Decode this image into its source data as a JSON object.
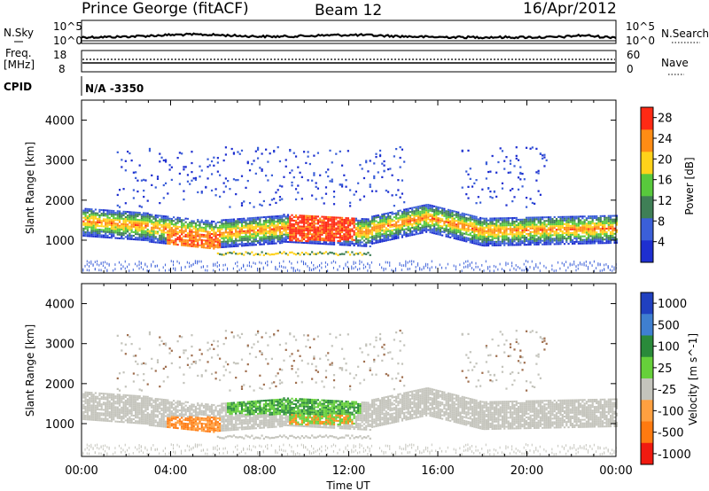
{
  "header": {
    "station": "Prince George (fitACF)",
    "beam": "Beam 12",
    "date": "16/Apr/2012"
  },
  "strips": {
    "nsky_label": "N.Sky",
    "nsearch_label": "N.Search",
    "noise_ticks": [
      "10^5",
      "10^0"
    ],
    "freq_label_1": "Freq.",
    "freq_label_2": "[MHz]",
    "freq_left_ticks": [
      "18",
      "8"
    ],
    "nave_label": "Nave",
    "nave_right_ticks": [
      "60",
      "0"
    ],
    "cpid_label": "CPID",
    "cpid_value": "N/A -3350"
  },
  "colors": {
    "power_scale": [
      "#1e2fd0",
      "#3b5fd8",
      "#3f7f56",
      "#58c93c",
      "#ffd21a",
      "#ff8c14",
      "#ff2a14"
    ],
    "velocity_scale": [
      "#2040c0",
      "#3f7fd0",
      "#2a8a3a",
      "#66d03a",
      "#c4c4bc",
      "#ffa040",
      "#ff7a10",
      "#f01a10"
    ],
    "ground_scatter": "#c4c4bc"
  },
  "chart_data": [
    {
      "type": "heatmap",
      "title": "Prince George (fitACF)  Beam 12  16/Apr/2012",
      "panel": "power",
      "ylabel": "Slant Range [km]",
      "xlabel": "Time UT",
      "x_ticks": [
        "00:00",
        "04:00",
        "08:00",
        "12:00",
        "16:00",
        "20:00",
        "00:00"
      ],
      "y_ticks": [
        "1000",
        "2000",
        "3000",
        "4000"
      ],
      "ylim": [
        180,
        4500
      ],
      "xlim_hours": [
        0,
        24
      ],
      "colorbar": {
        "label": "Power [dB]",
        "ticks": [
          "28",
          "24",
          "20",
          "16",
          "12",
          "8",
          "4"
        ],
        "range": [
          0,
          30
        ]
      },
      "features": [
        {
          "name": "ground scatter band",
          "t_start": 0,
          "t_end": 24,
          "range_km_start": 1050,
          "range_km_end": 1750,
          "power_db": 14
        },
        {
          "name": "strong echoes",
          "t_start": 9.5,
          "t_end": 12.0,
          "range_km_start": 1000,
          "range_km_end": 1650,
          "power_db": 28
        },
        {
          "name": "low-range echoes",
          "t_start": 3.8,
          "t_end": 6.2,
          "range_km_start": 800,
          "range_km_end": 1100,
          "power_db": 26
        },
        {
          "name": "thin lower band",
          "t_start": 6.0,
          "t_end": 13.0,
          "range_km_start": 500,
          "range_km_end": 700,
          "power_db": 18
        }
      ]
    },
    {
      "type": "heatmap",
      "panel": "velocity",
      "ylabel": "Slant Range [km]",
      "xlabel": "Time UT",
      "x_ticks": [
        "00:00",
        "04:00",
        "08:00",
        "12:00",
        "16:00",
        "20:00",
        "00:00"
      ],
      "y_ticks": [
        "1000",
        "2000",
        "3000",
        "4000"
      ],
      "ylim": [
        180,
        4500
      ],
      "xlim_hours": [
        0,
        24
      ],
      "colorbar": {
        "label": "Velocity [m s^-1]",
        "ticks": [
          "1000",
          "500",
          "100",
          "25",
          "-25",
          "-100",
          "-500",
          "-1000"
        ],
        "range": [
          -1000,
          1000
        ]
      }
    }
  ]
}
